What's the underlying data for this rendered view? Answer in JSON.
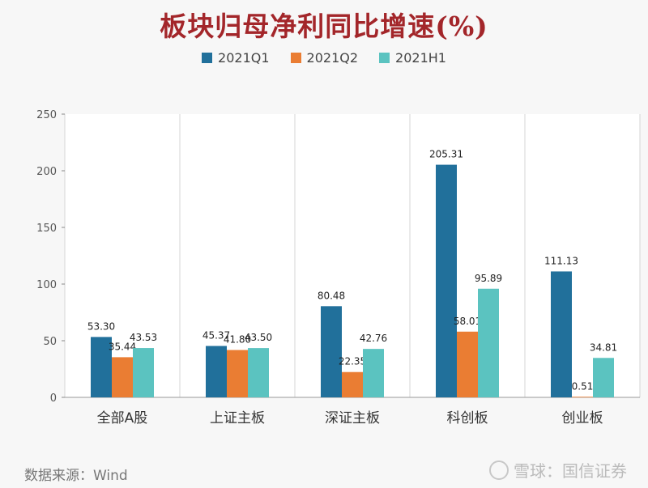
{
  "title": "板块归母净利同比增速(%)",
  "source": "数据来源：Wind",
  "watermark": "雪球：国信证券",
  "colors": {
    "title": "#a3262a",
    "series": [
      "#21709b",
      "#ea7d33",
      "#5bc3c0"
    ],
    "grid": "#d6d6d6",
    "axis": "#555555"
  },
  "chart_data": {
    "type": "bar",
    "title": "板块归母净利同比增速(%)",
    "categories": [
      "全部A股",
      "上证主板",
      "深证主板",
      "科创板",
      "创业板"
    ],
    "series": [
      {
        "name": "2021Q1",
        "values": [
          53.3,
          45.37,
          80.48,
          205.31,
          111.13
        ]
      },
      {
        "name": "2021Q2",
        "values": [
          35.44,
          41.8,
          22.35,
          58.01,
          0.51
        ]
      },
      {
        "name": "2021H1",
        "values": [
          43.53,
          43.5,
          42.76,
          95.89,
          34.81
        ]
      }
    ],
    "ylim": [
      0,
      250
    ],
    "yticks": [
      0,
      50,
      100,
      150,
      200,
      250
    ],
    "legend_position": "top",
    "grid": "vertical category separators",
    "xlabel": "",
    "ylabel": ""
  }
}
